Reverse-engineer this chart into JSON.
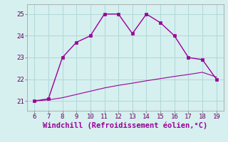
{
  "x_upper": [
    6,
    7,
    8,
    9,
    10,
    11,
    12,
    13,
    14,
    15,
    16,
    17,
    18,
    19
  ],
  "y_upper": [
    21.0,
    21.1,
    23.0,
    23.7,
    24.0,
    25.0,
    25.0,
    24.1,
    25.0,
    24.6,
    24.0,
    23.0,
    22.9,
    22.0
  ],
  "x_lower": [
    6,
    7,
    8,
    9,
    10,
    11,
    12,
    13,
    14,
    15,
    16,
    17,
    18,
    19
  ],
  "y_lower": [
    21.0,
    21.05,
    21.15,
    21.3,
    21.45,
    21.6,
    21.72,
    21.82,
    21.93,
    22.03,
    22.13,
    22.22,
    22.32,
    22.1
  ],
  "line_color": "#990099",
  "bg_color": "#d6efef",
  "grid_color": "#b0d8d8",
  "xlabel": "Windchill (Refroidissement éolien,°C)",
  "xlim": [
    5.5,
    19.5
  ],
  "ylim": [
    20.55,
    25.45
  ],
  "yticks": [
    21,
    22,
    23,
    24,
    25
  ],
  "xticks": [
    6,
    7,
    8,
    9,
    10,
    11,
    12,
    13,
    14,
    15,
    16,
    17,
    18,
    19
  ],
  "xlabel_fontsize": 7.5,
  "tick_fontsize": 6.5,
  "marker": "s",
  "markersize": 2.5,
  "linewidth": 1.0
}
